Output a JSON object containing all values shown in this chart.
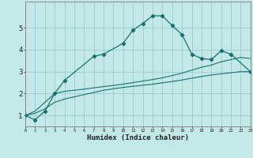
{
  "xlabel": "Humidex (Indice chaleur)",
  "background_color": "#c2e8e8",
  "grid_color": "#a0cfcf",
  "line_color": "#1a7070",
  "x_values": [
    0,
    1,
    2,
    3,
    4,
    5,
    6,
    7,
    8,
    9,
    10,
    11,
    12,
    13,
    14,
    15,
    16,
    17,
    18,
    19,
    20,
    21,
    22,
    23
  ],
  "curve_y": [
    1.0,
    0.8,
    1.2,
    2.0,
    2.6,
    null,
    null,
    3.7,
    3.8,
    null,
    4.3,
    4.9,
    5.2,
    5.55,
    5.55,
    5.1,
    4.7,
    3.8,
    3.6,
    3.55,
    3.95,
    3.8,
    null,
    3.0
  ],
  "line1_y": [
    1.0,
    1.1,
    1.3,
    1.6,
    1.75,
    1.85,
    1.95,
    2.05,
    2.15,
    2.22,
    2.28,
    2.33,
    2.38,
    2.43,
    2.49,
    2.55,
    2.62,
    2.7,
    2.78,
    2.85,
    2.9,
    2.95,
    3.0,
    3.0
  ],
  "line2_y": [
    1.0,
    1.2,
    1.6,
    2.0,
    2.1,
    2.15,
    2.2,
    2.26,
    2.32,
    2.37,
    2.43,
    2.5,
    2.57,
    2.64,
    2.72,
    2.82,
    2.93,
    3.07,
    3.2,
    3.3,
    3.45,
    3.55,
    3.65,
    3.6
  ],
  "ylim": [
    0.5,
    6.2
  ],
  "xlim": [
    0,
    23
  ],
  "yticks": [
    1,
    2,
    3,
    4,
    5
  ],
  "xticks": [
    0,
    1,
    2,
    3,
    4,
    5,
    6,
    7,
    8,
    9,
    10,
    11,
    12,
    13,
    14,
    15,
    16,
    17,
    18,
    19,
    20,
    21,
    22,
    23
  ]
}
